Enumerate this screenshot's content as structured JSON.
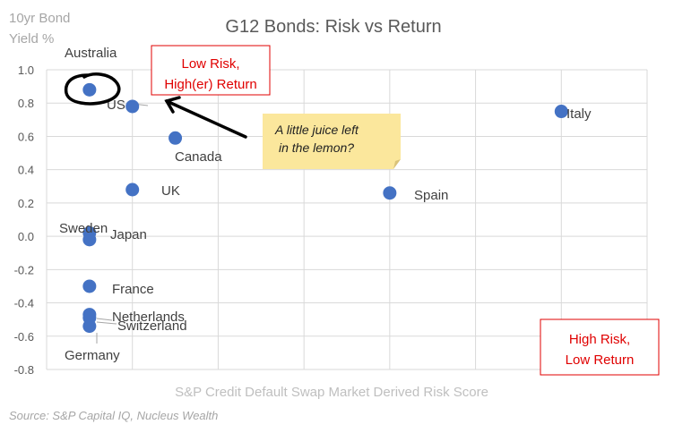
{
  "chart_data": {
    "type": "scatter",
    "title": "G12 Bonds: Risk vs Return",
    "ylabel_line1": "10yr Bond",
    "ylabel_line2": "Yield %",
    "xlabel": "S&P Credit Default Swap Market Derived Risk Score",
    "source": "Source: S&P Capital IQ, Nucleus Wealth",
    "ylim": [
      -0.8,
      1.0
    ],
    "xlim": [
      0,
      14
    ],
    "y_ticks": [
      "1.0",
      "0.8",
      "0.6",
      "0.4",
      "0.2",
      "0.0",
      "-0.2",
      "-0.4",
      "-0.6",
      "-0.8"
    ],
    "grid": true,
    "point_color": "#4472C4",
    "points": [
      {
        "label": "Australia",
        "x": 1.0,
        "y": 0.88
      },
      {
        "label": "US",
        "x": 2.0,
        "y": 0.78
      },
      {
        "label": "Canada",
        "x": 3.0,
        "y": 0.59
      },
      {
        "label": "UK",
        "x": 2.0,
        "y": 0.28
      },
      {
        "label": "Sweden",
        "x": 1.0,
        "y": 0.02
      },
      {
        "label": "Japan",
        "x": 1.0,
        "y": -0.02
      },
      {
        "label": "France",
        "x": 1.0,
        "y": -0.3
      },
      {
        "label": "Netherlands",
        "x": 1.0,
        "y": -0.47
      },
      {
        "label": "Switzerland",
        "x": 1.0,
        "y": -0.49
      },
      {
        "label": "Germany",
        "x": 1.0,
        "y": -0.54
      },
      {
        "label": "Spain",
        "x": 8.0,
        "y": 0.26
      },
      {
        "label": "Italy",
        "x": 12.0,
        "y": 0.75
      }
    ],
    "annotations": {
      "low_risk_line1": "Low Risk,",
      "low_risk_line2": "High(er) Return",
      "high_risk_line1": "High Risk,",
      "high_risk_line2": "Low Return",
      "note_line1": "A little juice left",
      "note_line2": "in the lemon?",
      "annotation_color": "#E00000",
      "note_background": "#FBE79C"
    }
  }
}
